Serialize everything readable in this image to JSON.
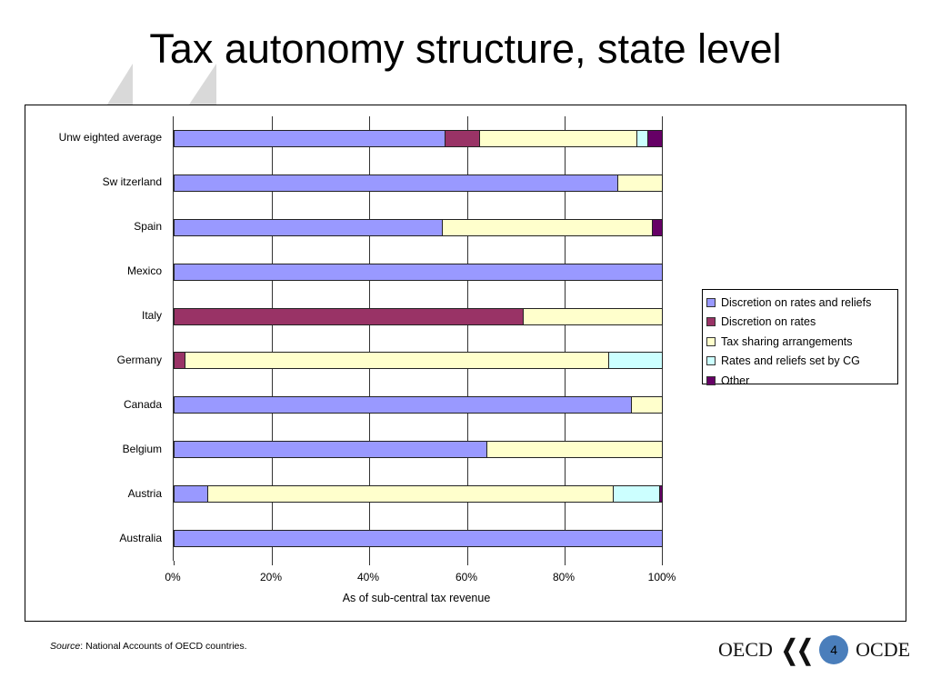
{
  "slide": {
    "title": "Tax autonomy structure, state level",
    "source_label": "Source",
    "source_text": ":  National Accounts of  OECD countries.",
    "logo_left": "OECD",
    "logo_right": "OCDE",
    "page_number": "4"
  },
  "chart_data": {
    "type": "bar",
    "orientation": "horizontal",
    "stacked": "percent",
    "title": "",
    "xlabel": "As of sub-central tax revenue",
    "ylabel": "",
    "xlim": [
      0,
      100
    ],
    "x_ticks": [
      "0%",
      "20%",
      "40%",
      "60%",
      "80%",
      "100%"
    ],
    "grid": true,
    "legend_position": "right",
    "categories": [
      "Unweighted average",
      "Switzerland",
      "Spain",
      "Mexico",
      "Italy",
      "Germany",
      "Canada",
      "Belgium",
      "Austria",
      "Australia"
    ],
    "category_labels_displayed": [
      "Unw eighted average",
      "Sw itzerland",
      "Spain",
      "Mexico",
      "Italy",
      "Germany",
      "Canada",
      "Belgium",
      "Austria",
      "Australia"
    ],
    "series": [
      {
        "name": "Discretion on rates and reliefs",
        "color": "#9999ff",
        "values": [
          55.5,
          90.8,
          55.0,
          100,
          0,
          0,
          93.6,
          64.1,
          7.0,
          100
        ]
      },
      {
        "name": "Discretion on rates",
        "color": "#993366",
        "values": [
          7.1,
          0,
          0,
          0,
          71.6,
          2.5,
          0,
          0,
          0,
          0
        ]
      },
      {
        "name": "Tax sharing arrangements",
        "color": "#ffffcc",
        "values": [
          32.2,
          9.2,
          43.0,
          0,
          28.4,
          86.6,
          6.4,
          35.9,
          82.9,
          0
        ]
      },
      {
        "name": "Rates and reliefs set by CG",
        "color": "#ccffff",
        "values": [
          2.3,
          0,
          0,
          0,
          0,
          10.9,
          0,
          0,
          9.6,
          0
        ]
      },
      {
        "name": "Other",
        "color": "#660066",
        "values": [
          2.9,
          0,
          2.0,
          0,
          0,
          0,
          0,
          0,
          0.5,
          0
        ]
      }
    ]
  }
}
